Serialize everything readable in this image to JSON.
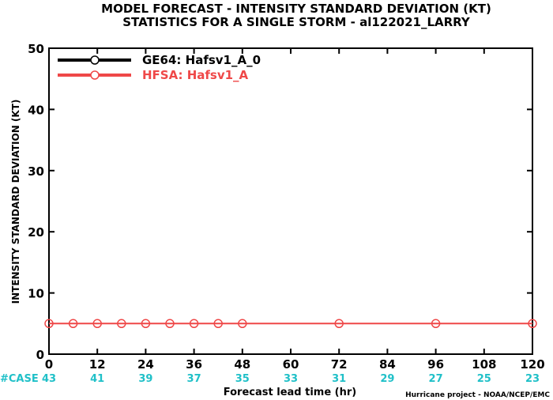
{
  "chart_data": {
    "type": "line",
    "title": "MODEL FORECAST - INTENSITY STANDARD DEVIATION (KT)",
    "subtitle": "STATISTICS FOR A SINGLE STORM - al122021_LARRY",
    "xlabel": "Forecast lead time (hr)",
    "ylabel": "INTENSITY STANDARD DEVIATION (KT)",
    "xlim": [
      0,
      120
    ],
    "ylim": [
      0,
      50
    ],
    "xticks": [
      0,
      12,
      24,
      36,
      48,
      60,
      72,
      84,
      96,
      108,
      120
    ],
    "yticks": [
      0,
      10,
      20,
      30,
      40,
      50
    ],
    "legend_placement": "top-left",
    "series": [
      {
        "name": "GE64: Hafsv1_A_0",
        "color": "#000000",
        "x": [],
        "y": []
      },
      {
        "name": "HFSA: Hafsv1_A",
        "color": "#ef4848",
        "x": [
          0,
          6,
          12,
          18,
          24,
          30,
          36,
          42,
          48,
          72,
          96,
          120
        ],
        "y": [
          5,
          5,
          5,
          5,
          5,
          5,
          5,
          5,
          5,
          5,
          5,
          5
        ]
      }
    ],
    "cases_label": "#CASE",
    "cases": [
      {
        "x": 0,
        "n": "43"
      },
      {
        "x": 12,
        "n": "41"
      },
      {
        "x": 24,
        "n": "39"
      },
      {
        "x": 36,
        "n": "37"
      },
      {
        "x": 48,
        "n": "35"
      },
      {
        "x": 60,
        "n": "33"
      },
      {
        "x": 72,
        "n": "31"
      },
      {
        "x": 84,
        "n": "29"
      },
      {
        "x": 96,
        "n": "27"
      },
      {
        "x": 108,
        "n": "25"
      },
      {
        "x": 120,
        "n": "23"
      }
    ],
    "credit": "Hurricane project - NOAA/NCEP/EMC"
  }
}
